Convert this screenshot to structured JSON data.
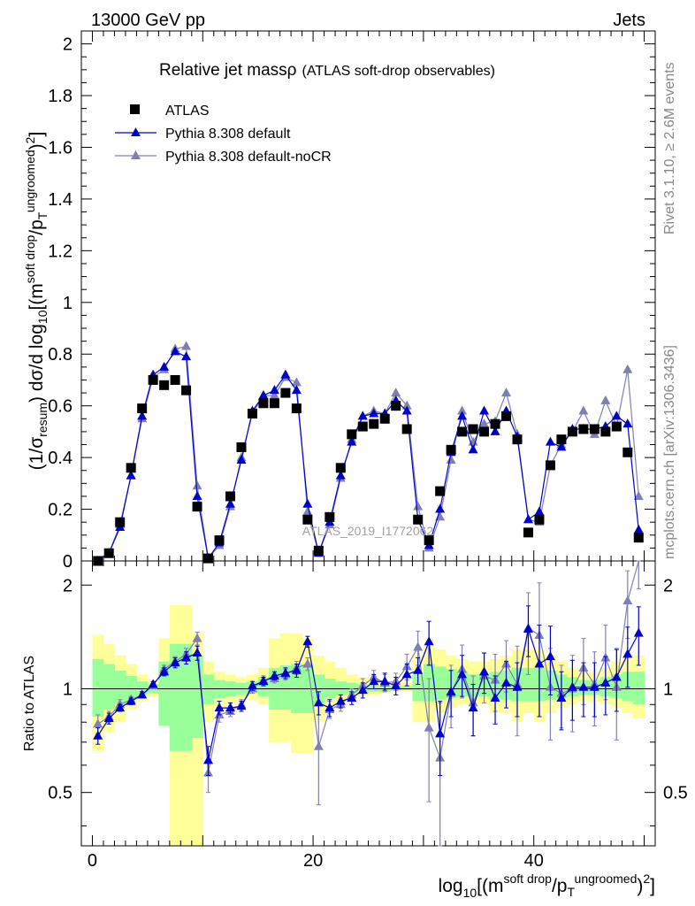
{
  "header": {
    "left": "13000 GeV pp",
    "right": "Jets"
  },
  "side_text": {
    "top": "Rivet 3.1.10, ≥ 2.6M events",
    "bottom": "mcplots.cern.ch [arXiv:1306.3436]"
  },
  "watermark": "ATLAS_2019_I1772062",
  "colors": {
    "atlas": "#000000",
    "default": "#0000cc",
    "nocr": "#8080b0",
    "band_yellow": "#ffff99",
    "band_green": "#99ff99"
  },
  "chart_data": [
    {
      "type": "scatter",
      "title_main": "Relative jet massρ",
      "title_sub": "(ATLAS soft-drop observables)",
      "ylabel": "(1/σresum) dσ/d log10[(msoft drop/pTungroomed)2]",
      "xlim": [
        -1,
        51
      ],
      "ylim": [
        0,
        2.05
      ],
      "yticks": [
        "0",
        "0.2",
        "0.4",
        "0.6",
        "0.8",
        "1",
        "1.2",
        "1.4",
        "1.6",
        "1.8",
        "2"
      ],
      "legend_position": "top-left",
      "series": [
        {
          "name": "ATLAS",
          "marker": "square",
          "x": [
            0.5,
            1.5,
            2.5,
            3.5,
            4.5,
            5.5,
            6.5,
            7.5,
            8.5,
            9.5,
            10.5,
            11.5,
            12.5,
            13.5,
            14.5,
            15.5,
            16.5,
            17.5,
            18.5,
            19.5,
            20.5,
            21.5,
            22.5,
            23.5,
            24.5,
            25.5,
            26.5,
            27.5,
            28.5,
            29.5,
            30.5,
            31.5,
            32.5,
            33.5,
            34.5,
            35.5,
            36.5,
            37.5,
            38.5,
            39.5,
            40.5,
            41.5,
            42.5,
            43.5,
            44.5,
            45.5,
            46.5,
            47.5,
            48.5,
            49.5
          ],
          "y": [
            0.0,
            0.03,
            0.15,
            0.36,
            0.59,
            0.7,
            0.68,
            0.7,
            0.66,
            0.21,
            0.01,
            0.08,
            0.25,
            0.44,
            0.57,
            0.61,
            0.61,
            0.65,
            0.59,
            0.16,
            0.04,
            0.17,
            0.36,
            0.49,
            0.52,
            0.53,
            0.55,
            0.6,
            0.51,
            0.16,
            0.08,
            0.27,
            0.43,
            0.5,
            0.51,
            0.5,
            0.53,
            0.56,
            0.47,
            0.11,
            0.16,
            0.37,
            0.47,
            0.5,
            0.51,
            0.51,
            0.5,
            0.52,
            0.42,
            0.09
          ]
        },
        {
          "name": "Pythia 8.308 default",
          "marker": "triangle",
          "x": [
            0.5,
            1.5,
            2.5,
            3.5,
            4.5,
            5.5,
            6.5,
            7.5,
            8.5,
            9.5,
            10.5,
            11.5,
            12.5,
            13.5,
            14.5,
            15.5,
            16.5,
            17.5,
            18.5,
            19.5,
            20.5,
            21.5,
            22.5,
            23.5,
            24.5,
            25.5,
            26.5,
            27.5,
            28.5,
            29.5,
            30.5,
            31.5,
            32.5,
            33.5,
            34.5,
            35.5,
            36.5,
            37.5,
            38.5,
            39.5,
            40.5,
            41.5,
            42.5,
            43.5,
            44.5,
            45.5,
            46.5,
            47.5,
            48.5,
            49.5
          ],
          "y": [
            0.0,
            0.03,
            0.13,
            0.33,
            0.56,
            0.72,
            0.75,
            0.81,
            0.79,
            0.25,
            0.01,
            0.07,
            0.22,
            0.39,
            0.58,
            0.64,
            0.66,
            0.72,
            0.66,
            0.22,
            0.03,
            0.15,
            0.33,
            0.46,
            0.56,
            0.57,
            0.57,
            0.62,
            0.58,
            0.16,
            0.06,
            0.2,
            0.42,
            0.56,
            0.43,
            0.58,
            0.5,
            0.58,
            0.48,
            0.16,
            0.19,
            0.46,
            0.44,
            0.51,
            0.51,
            0.51,
            0.52,
            0.56,
            0.53,
            0.12
          ]
        },
        {
          "name": "Pythia 8.308 default-noCR",
          "marker": "triangle",
          "x": [
            0.5,
            1.5,
            2.5,
            3.5,
            4.5,
            5.5,
            6.5,
            7.5,
            8.5,
            9.5,
            10.5,
            11.5,
            12.5,
            13.5,
            14.5,
            15.5,
            16.5,
            17.5,
            18.5,
            19.5,
            20.5,
            21.5,
            22.5,
            23.5,
            24.5,
            25.5,
            26.5,
            27.5,
            28.5,
            29.5,
            30.5,
            31.5,
            32.5,
            33.5,
            34.5,
            35.5,
            36.5,
            37.5,
            38.5,
            39.5,
            40.5,
            41.5,
            42.5,
            43.5,
            44.5,
            45.5,
            46.5,
            47.5,
            48.5,
            49.5
          ],
          "y": [
            0.0,
            0.03,
            0.14,
            0.33,
            0.55,
            0.71,
            0.74,
            0.82,
            0.83,
            0.29,
            0.01,
            0.06,
            0.21,
            0.4,
            0.57,
            0.64,
            0.64,
            0.71,
            0.69,
            0.19,
            0.03,
            0.14,
            0.32,
            0.47,
            0.56,
            0.58,
            0.57,
            0.65,
            0.6,
            0.21,
            0.05,
            0.17,
            0.39,
            0.58,
            0.46,
            0.53,
            0.54,
            0.65,
            0.49,
            0.16,
            0.15,
            0.37,
            0.45,
            0.5,
            0.58,
            0.49,
            0.62,
            0.52,
            0.74,
            0.25
          ]
        }
      ]
    },
    {
      "type": "scatter",
      "ylabel": "Ratio to ATLAS",
      "xlabel": "log10[(msoft drop/pTungroomed)2]",
      "xlim": [
        -1,
        51
      ],
      "ylim": [
        0.35,
        2.35
      ],
      "ylog": true,
      "yticks": [
        "0.5",
        "1",
        "2"
      ],
      "xticks": [
        "0",
        "20",
        "40"
      ],
      "band_yellow": {
        "x": [
          0.5,
          1.5,
          2.5,
          3.5,
          4.5,
          5.5,
          6.5,
          7.5,
          8.5,
          9.5,
          10.5,
          11.5,
          12.5,
          13.5,
          14.5,
          15.5,
          16.5,
          17.5,
          18.5,
          19.5,
          20.5,
          21.5,
          22.5,
          23.5,
          24.5,
          25.5,
          26.5,
          27.5,
          28.5,
          29.5,
          30.5,
          31.5,
          32.5,
          33.5,
          34.5,
          35.5,
          36.5,
          37.5,
          38.5,
          39.5,
          40.5,
          41.5,
          42.5,
          43.5,
          44.5,
          45.5,
          46.5,
          47.5,
          48.5,
          49.5
        ],
        "lo": [
          0.66,
          0.75,
          0.8,
          0.87,
          0.92,
          0.95,
          0.93,
          0.35,
          0.35,
          0.35,
          0.8,
          0.88,
          0.9,
          0.92,
          0.93,
          0.9,
          0.7,
          0.7,
          0.65,
          0.65,
          0.8,
          0.88,
          0.92,
          0.95,
          0.95,
          0.96,
          0.97,
          0.98,
          0.98,
          0.8,
          0.8,
          0.85,
          0.88,
          0.9,
          0.9,
          0.9,
          0.85,
          0.85,
          0.8,
          0.85,
          0.8,
          0.85,
          0.88,
          0.9,
          0.92,
          0.92,
          0.9,
          0.88,
          0.85,
          0.82
        ],
        "hi": [
          1.43,
          1.35,
          1.25,
          1.18,
          1.1,
          1.05,
          1.4,
          1.75,
          1.75,
          1.45,
          1.2,
          1.12,
          1.1,
          1.08,
          1.1,
          1.15,
          1.4,
          1.45,
          1.45,
          1.4,
          1.25,
          1.2,
          1.15,
          1.1,
          1.08,
          1.06,
          1.05,
          1.04,
          1.05,
          1.25,
          1.35,
          1.3,
          1.25,
          1.22,
          1.2,
          1.2,
          1.22,
          1.25,
          1.3,
          1.3,
          1.3,
          1.25,
          1.2,
          1.15,
          1.12,
          1.12,
          1.15,
          1.2,
          1.25,
          1.25
        ]
      },
      "band_green": {
        "x": [
          0.5,
          1.5,
          2.5,
          3.5,
          4.5,
          5.5,
          6.5,
          7.5,
          8.5,
          9.5,
          10.5,
          11.5,
          12.5,
          13.5,
          14.5,
          15.5,
          16.5,
          17.5,
          18.5,
          19.5,
          20.5,
          21.5,
          22.5,
          23.5,
          24.5,
          25.5,
          26.5,
          27.5,
          28.5,
          29.5,
          30.5,
          31.5,
          32.5,
          33.5,
          34.5,
          35.5,
          36.5,
          37.5,
          38.5,
          39.5,
          40.5,
          41.5,
          42.5,
          43.5,
          44.5,
          45.5,
          46.5,
          47.5,
          48.5,
          49.5
        ],
        "lo": [
          0.83,
          0.87,
          0.9,
          0.93,
          0.96,
          0.97,
          0.78,
          0.66,
          0.66,
          0.72,
          0.9,
          0.94,
          0.95,
          0.96,
          0.97,
          0.95,
          0.87,
          0.87,
          0.85,
          0.85,
          0.9,
          0.94,
          0.96,
          0.97,
          0.97,
          0.98,
          0.98,
          0.99,
          0.99,
          0.92,
          0.92,
          0.93,
          0.94,
          0.95,
          0.95,
          0.95,
          0.93,
          0.93,
          0.92,
          0.92,
          0.92,
          0.93,
          0.94,
          0.95,
          0.96,
          0.96,
          0.95,
          0.94,
          0.92,
          0.9
        ],
        "hi": [
          1.22,
          1.18,
          1.13,
          1.09,
          1.05,
          1.03,
          1.2,
          1.35,
          1.35,
          1.25,
          1.1,
          1.06,
          1.05,
          1.04,
          1.05,
          1.08,
          1.15,
          1.17,
          1.18,
          1.17,
          1.1,
          1.07,
          1.05,
          1.04,
          1.03,
          1.02,
          1.02,
          1.02,
          1.02,
          1.1,
          1.18,
          1.16,
          1.14,
          1.12,
          1.1,
          1.1,
          1.12,
          1.13,
          1.15,
          1.15,
          1.15,
          1.13,
          1.1,
          1.08,
          1.06,
          1.06,
          1.08,
          1.1,
          1.12,
          1.12
        ]
      },
      "series": [
        {
          "name": "Pythia 8.308 default",
          "marker": "triangle",
          "x": [
            0.5,
            1.5,
            2.5,
            3.5,
            4.5,
            5.5,
            6.5,
            7.5,
            8.5,
            9.5,
            10.5,
            11.5,
            12.5,
            13.5,
            14.5,
            15.5,
            16.5,
            17.5,
            18.5,
            19.5,
            20.5,
            21.5,
            22.5,
            23.5,
            24.5,
            25.5,
            26.5,
            27.5,
            28.5,
            29.5,
            30.5,
            31.5,
            32.5,
            33.5,
            34.5,
            35.5,
            36.5,
            37.5,
            38.5,
            39.5,
            40.5,
            41.5,
            42.5,
            43.5,
            44.5,
            45.5,
            46.5,
            47.5,
            48.5,
            49.5
          ],
          "y": [
            0.73,
            0.82,
            0.88,
            0.92,
            0.96,
            1.03,
            1.12,
            1.19,
            1.23,
            1.27,
            0.62,
            0.88,
            0.88,
            0.89,
            1.02,
            1.05,
            1.09,
            1.11,
            1.13,
            1.37,
            0.91,
            0.88,
            0.92,
            0.94,
            0.99,
            1.05,
            1.05,
            1.02,
            1.1,
            1.13,
            1.37,
            0.74,
            0.98,
            1.1,
            0.88,
            1.12,
            0.94,
            1.04,
            1.01,
            1.49,
            1.18,
            1.24,
            0.94,
            1.01,
            1.01,
            1.01,
            1.04,
            1.08,
            1.26,
            1.45
          ],
          "err": [
            0.04,
            0.03,
            0.02,
            0.02,
            0.02,
            0.02,
            0.03,
            0.04,
            0.05,
            0.06,
            0.06,
            0.04,
            0.03,
            0.03,
            0.03,
            0.03,
            0.03,
            0.04,
            0.05,
            0.05,
            0.07,
            0.05,
            0.04,
            0.04,
            0.05,
            0.05,
            0.06,
            0.06,
            0.08,
            0.1,
            0.2,
            0.18,
            0.15,
            0.15,
            0.15,
            0.15,
            0.15,
            0.16,
            0.18,
            0.25,
            0.35,
            0.28,
            0.18,
            0.2,
            0.18,
            0.18,
            0.2,
            0.22,
            0.25,
            0.28
          ]
        },
        {
          "name": "Pythia 8.308 default-noCR",
          "marker": "triangle",
          "x": [
            0.5,
            1.5,
            2.5,
            3.5,
            4.5,
            5.5,
            6.5,
            7.5,
            8.5,
            9.5,
            10.5,
            11.5,
            12.5,
            13.5,
            14.5,
            15.5,
            16.5,
            17.5,
            18.5,
            19.5,
            20.5,
            21.5,
            22.5,
            23.5,
            24.5,
            25.5,
            26.5,
            27.5,
            28.5,
            29.5,
            30.5,
            31.5,
            32.5,
            33.5,
            34.5,
            35.5,
            36.5,
            37.5,
            38.5,
            39.5,
            40.5,
            41.5,
            42.5,
            43.5,
            44.5,
            45.5,
            46.5,
            47.5,
            48.5,
            49.5
          ],
          "y": [
            0.79,
            0.83,
            0.9,
            0.93,
            0.96,
            1.02,
            1.14,
            1.2,
            1.26,
            1.4,
            0.57,
            0.84,
            0.86,
            0.9,
            1.0,
            1.06,
            1.07,
            1.1,
            1.15,
            1.18,
            0.68,
            0.87,
            0.9,
            0.96,
            1.02,
            1.08,
            1.04,
            1.05,
            1.16,
            1.32,
            0.77,
            0.63,
            0.97,
            1.14,
            0.91,
            1.09,
            1.06,
            1.18,
            1.03,
            1.5,
            1.43,
            1.01,
            0.97,
            1.0,
            1.15,
            1.03,
            1.23,
            1.01,
            1.8,
            2.45
          ],
          "err": [
            0.05,
            0.03,
            0.03,
            0.02,
            0.02,
            0.02,
            0.03,
            0.04,
            0.05,
            0.06,
            0.07,
            0.04,
            0.03,
            0.03,
            0.03,
            0.03,
            0.03,
            0.04,
            0.05,
            0.05,
            0.22,
            0.05,
            0.04,
            0.04,
            0.05,
            0.05,
            0.06,
            0.06,
            0.1,
            0.15,
            0.3,
            0.28,
            0.2,
            0.2,
            0.18,
            0.18,
            0.2,
            0.2,
            0.3,
            0.4,
            0.6,
            0.3,
            0.2,
            0.25,
            0.25,
            0.25,
            0.3,
            0.3,
            0.4,
            0.5
          ]
        }
      ]
    }
  ]
}
